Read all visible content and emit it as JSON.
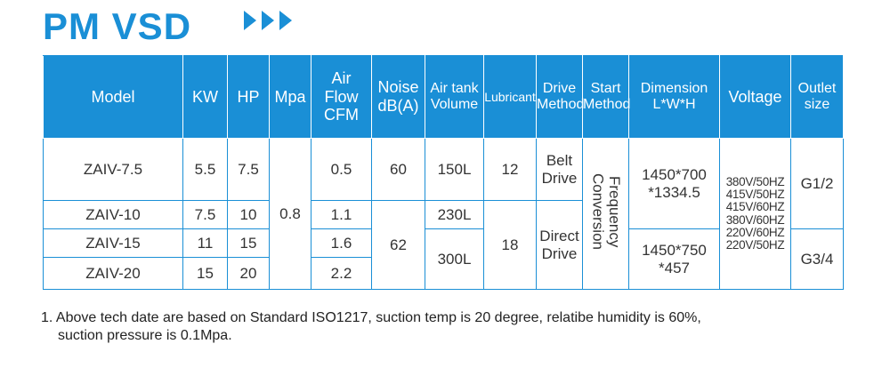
{
  "title": "PM VSD",
  "accent_color": "#1a8fd6",
  "headers": {
    "model": "Model",
    "kw": "KW",
    "hp": "HP",
    "mpa": "Mpa",
    "air_flow": [
      "Air",
      "Flow",
      "CFM"
    ],
    "noise": [
      "Noise",
      "dB(A)"
    ],
    "air_tank": [
      "Air tank",
      "Volume"
    ],
    "lubricant": "Lubricant",
    "drive": [
      "Drive",
      "Method"
    ],
    "start": [
      "Start",
      "Method"
    ],
    "dimension": [
      "Dimension",
      "L*W*H"
    ],
    "voltage": "Voltage",
    "outlet": [
      "Outlet",
      "size"
    ]
  },
  "rows": [
    {
      "model": "ZAIV-7.5",
      "kw": "5.5",
      "hp": "7.5",
      "flow": "0.5"
    },
    {
      "model": "ZAIV-10",
      "kw": "7.5",
      "hp": "10",
      "flow": "1.1"
    },
    {
      "model": "ZAIV-15",
      "kw": "11",
      "hp": "15",
      "flow": "1.6"
    },
    {
      "model": "ZAIV-20",
      "kw": "15",
      "hp": "20",
      "flow": "2.2"
    }
  ],
  "merged": {
    "mpa": "0.8",
    "noise_1": "60",
    "noise_2": "62",
    "tank_1": "150L",
    "tank_2": "230L",
    "tank_3": "300L",
    "lub_1": "12",
    "lub_2": "18",
    "drive_1": [
      "Belt",
      "Drive"
    ],
    "drive_2": [
      "Direct",
      "Drive"
    ],
    "start": [
      "Frequency",
      "Conversion"
    ],
    "dim_1": [
      "1450*700",
      "*1334.5"
    ],
    "dim_2": [
      "1450*750",
      "*457"
    ],
    "voltage": [
      "380V/50HZ",
      "415V/50HZ",
      "415V/60HZ",
      "380V/60HZ",
      "220V/60HZ",
      "220V/50HZ"
    ],
    "outlet_1": "G1/2",
    "outlet_2": "G3/4"
  },
  "note": {
    "line1": "1. Above tech date are based on Standard ISO1217, suction temp is 20 degree, relatibe humidity is 60%,",
    "line2": "suction pressure is 0.1Mpa."
  }
}
